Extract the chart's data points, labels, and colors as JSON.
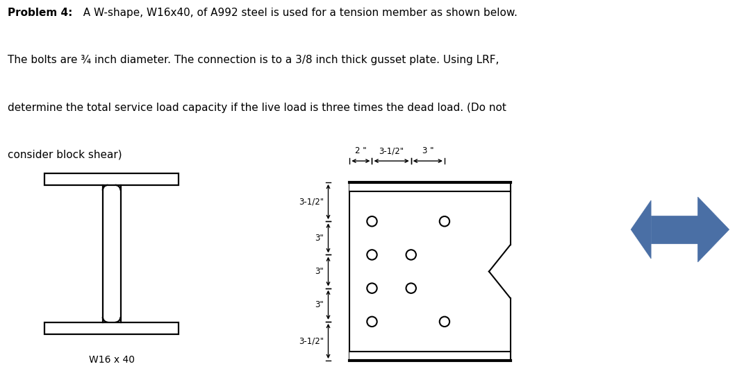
{
  "title_bold": "Problem 4:",
  "title_rest": "  A W-shape, W16x40, of A992 steel is used for a tension member as shown below.",
  "line2": "The bolts are ¾ inch diameter. The connection is to a 3/8 inch thick gusset plate. Using LRF,",
  "line3": "determine the total service load capacity if the live load is three times the dead load. (Do not",
  "line4": "consider block shear)",
  "w_label": "W16 x 40",
  "background": "#ffffff",
  "line_color": "#000000",
  "arrow_color": "#4a6fa5",
  "dim_labels_v": [
    "3-1/2\"",
    "3\"",
    "3\"",
    "3\"",
    "3-1/2\""
  ],
  "dim_labels_h": [
    "2 \"",
    "3-1/2\"",
    "3 \""
  ]
}
